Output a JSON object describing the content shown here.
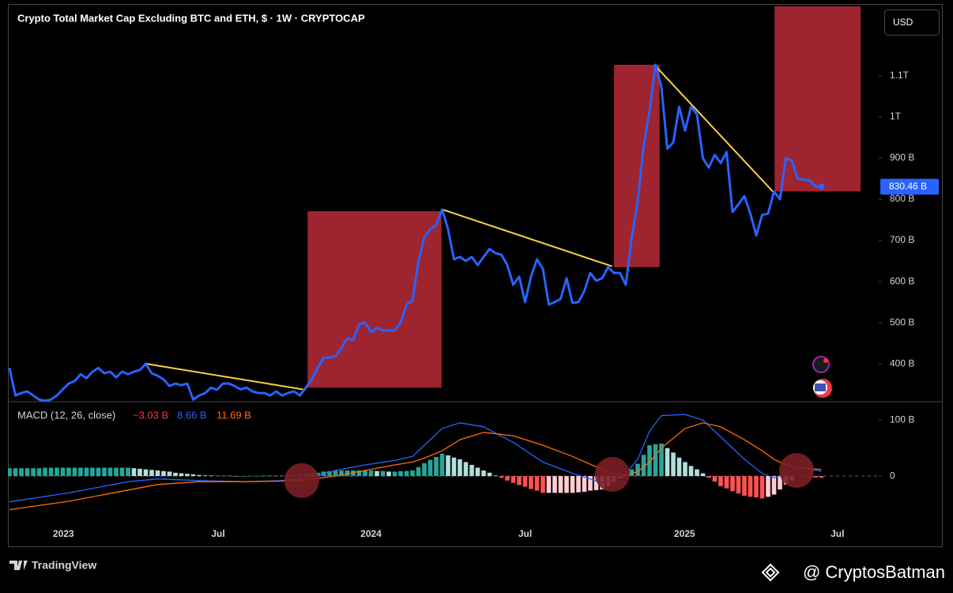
{
  "header": {
    "title": "Crypto Total Market Cap Excluding BTC and ETH, $ · 1W · CRYPTOCAP",
    "currency": "USD"
  },
  "footer": {
    "brand": "TradingView",
    "credit": "@ CryptosBatman"
  },
  "chart_data": [
    {
      "type": "line",
      "color": "#2962ff",
      "values": [
        390,
        323,
        329,
        333,
        323,
        313,
        310,
        313,
        323,
        338,
        352,
        358,
        375,
        365,
        381,
        390,
        377,
        381,
        367,
        381,
        375,
        381,
        385,
        400,
        377,
        371,
        362,
        346,
        352,
        348,
        352,
        313,
        323,
        329,
        342,
        337,
        352,
        352,
        346,
        338,
        342,
        333,
        329,
        329,
        323,
        333,
        323,
        329,
        333,
        323,
        342,
        362,
        390,
        415,
        415,
        419,
        438,
        462,
        458,
        496,
        500,
        477,
        487,
        481,
        481,
        481,
        500,
        544,
        554,
        650,
        708,
        727,
        737,
        775,
        727,
        654,
        660,
        650,
        660,
        640,
        660,
        679,
        669,
        665,
        640,
        592,
        612,
        550,
        612,
        654,
        631,
        544,
        550,
        558,
        608,
        548,
        550,
        577,
        621,
        602,
        608,
        635,
        621,
        621,
        592,
        708,
        794,
        929,
        1015,
        1127,
        1073,
        923,
        938,
        1025,
        967,
        1025,
        1006,
        900,
        877,
        908,
        888,
        915,
        769,
        788,
        808,
        765,
        712,
        762,
        765,
        819,
        800,
        900,
        894,
        850,
        848,
        846,
        831,
        830.46
      ],
      "last_price_label": "830.46 B",
      "xlim": [
        0,
        146.4
      ],
      "ylim": [
        310,
        1269
      ],
      "yticks": [
        {
          "value": 400,
          "label": "400 B"
        },
        {
          "value": 500,
          "label": "500 B"
        },
        {
          "value": 600,
          "label": "600 B"
        },
        {
          "value": 700,
          "label": "700 B"
        },
        {
          "value": 800,
          "label": "800 B"
        },
        {
          "value": 900,
          "label": "900 B"
        },
        {
          "value": 1000,
          "label": "1T"
        },
        {
          "value": 1100,
          "label": "1.1T"
        }
      ],
      "boxes": [
        {
          "x": [
            50.3,
            72.9
          ],
          "values": [
            342,
            771
          ]
        },
        {
          "x": [
            102,
            109.7
          ],
          "values": [
            635,
            1127
          ]
        },
        {
          "x": [
            129.1,
            143.6
          ],
          "values": [
            819,
            1269
          ]
        }
      ],
      "box_color": "#9e2430",
      "trendlines": [
        {
          "x": [
            23.1,
            49.5
          ],
          "values": [
            400,
            338
          ]
        },
        {
          "x": [
            73.1,
            101.7
          ],
          "values": [
            775,
            637
          ]
        },
        {
          "x": [
            108.8,
            128.8
          ],
          "values": [
            1127,
            819
          ]
        }
      ],
      "trendline_color": "#f5d442"
    },
    {
      "type": "macd",
      "label": "MACD (12, 26, close)",
      "last_labels": [
        "−3.03 B",
        "8.66 B",
        "11.69 B"
      ],
      "histogram": [
        14,
        14,
        14,
        14,
        14,
        14,
        15,
        15,
        15,
        15,
        15,
        15,
        15,
        15,
        15,
        15,
        15,
        15,
        15,
        15,
        15,
        14,
        13,
        12,
        11,
        10,
        9,
        8,
        6,
        5,
        4,
        3,
        2,
        2,
        1,
        1,
        1,
        1,
        0,
        0,
        0,
        0,
        0,
        1,
        1,
        1,
        1,
        2,
        3,
        3,
        4,
        5,
        6,
        8,
        9,
        10,
        10,
        10,
        10,
        10,
        10,
        10,
        9,
        9,
        8,
        8,
        9,
        9,
        10,
        16,
        23,
        29,
        34,
        40,
        37,
        33,
        30,
        25,
        20,
        15,
        10,
        6,
        1,
        -3,
        -8,
        -12,
        -16,
        -19,
        -23,
        -26,
        -30,
        -30,
        -30,
        -30,
        -30,
        -30,
        -29,
        -28,
        -26,
        -25,
        -24,
        -17,
        -10,
        -4,
        3,
        12,
        22,
        38,
        55,
        57,
        58,
        50,
        42,
        33,
        25,
        18,
        12,
        5,
        -3,
        -10,
        -18,
        -22,
        -27,
        -31,
        -35,
        -37,
        -38,
        -40,
        -37,
        -33,
        -24,
        -15,
        -8,
        0,
        -1,
        -2,
        -2.5,
        -3.03
      ],
      "histogram_colors": {
        "up_rising": "#26a69a",
        "up_falling": "#b2dfdb",
        "down_falling": "#ff5252",
        "down_rising": "#ffcdd2"
      },
      "lines": [
        {
          "color": "#2962ff",
          "x": [
            0,
            10,
            20,
            25,
            32,
            40,
            46,
            50,
            55,
            60,
            65,
            68,
            70,
            73,
            76,
            80,
            85,
            90,
            95,
            100,
            102,
            104,
            106,
            108,
            110,
            114,
            117,
            120,
            124,
            127,
            129,
            131,
            133,
            137
          ],
          "values": [
            -46,
            -30,
            -10,
            -5,
            -8,
            -10,
            -8,
            -3,
            10,
            20,
            28,
            35,
            55,
            85,
            95,
            88,
            60,
            25,
            5,
            -12,
            -5,
            5,
            30,
            80,
            108,
            110,
            100,
            70,
            30,
            5,
            -3,
            5,
            15,
            8.66
          ]
        },
        {
          "color": "#ff6d00",
          "x": [
            0,
            10,
            20,
            25,
            32,
            40,
            46,
            50,
            55,
            60,
            65,
            68,
            70,
            73,
            76,
            80,
            85,
            90,
            95,
            100,
            102,
            104,
            106,
            108,
            110,
            114,
            117,
            120,
            124,
            127,
            129,
            131,
            133,
            137
          ],
          "values": [
            -60,
            -45,
            -25,
            -15,
            -10,
            -10,
            -9,
            -7,
            0,
            10,
            20,
            25,
            32,
            45,
            65,
            78,
            72,
            55,
            35,
            12,
            5,
            2,
            8,
            25,
            50,
            85,
            95,
            88,
            65,
            45,
            30,
            20,
            15,
            11.69
          ]
        }
      ],
      "highlights": [
        {
          "x": 49.3,
          "y": -8
        },
        {
          "x": 101.7,
          "y": 3
        },
        {
          "x": 132.8,
          "y": 10
        }
      ],
      "highlight_color": "#7a1f25",
      "xlim": [
        0,
        146.4
      ],
      "ylim": [
        -124,
        130
      ],
      "yticks": [
        {
          "value": 100,
          "label": "100 B"
        },
        0
      ],
      "xticks": [
        {
          "value": 9.1,
          "label": "2023"
        },
        {
          "value": 35.2,
          "label": "Jul"
        },
        {
          "value": 61,
          "label": "2024"
        },
        {
          "value": 87,
          "label": "Jul"
        },
        {
          "value": 113.9,
          "label": "2025"
        },
        {
          "value": 139.7,
          "label": "Jul"
        }
      ]
    }
  ]
}
